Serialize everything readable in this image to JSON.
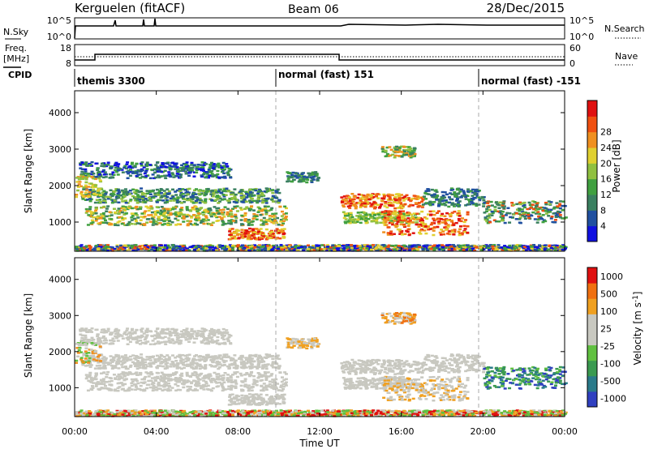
{
  "header": {
    "station": "Kerguelen (fitACF)",
    "beam": "Beam 06",
    "date": "28/Dec/2015"
  },
  "params": {
    "nsky_label": "N.Sky",
    "nsearch_label": "N.Search",
    "nsky_ticks": [
      "10^5",
      "10^0"
    ],
    "nsky_right_ticks": [
      "10^5",
      "10^0"
    ],
    "freq_label_1": "Freq.",
    "freq_label_2": "[MHz]",
    "freq_ticks": [
      "18",
      "8"
    ],
    "nave_label": "Nave",
    "nave_ticks": [
      "60",
      "0"
    ],
    "cpid_label": "CPID",
    "cpid_segments": [
      "themis 3300",
      "normal (fast) 151",
      "normal (fast) -151"
    ]
  },
  "chart_data": [
    {
      "type": "heatmap",
      "name": "power",
      "ylabel": "Slant Range [km]",
      "xlabel": "Time UT",
      "xticks": [
        "00:00",
        "04:00",
        "08:00",
        "12:00",
        "16:00",
        "20:00",
        "00:00"
      ],
      "yticks": [
        "1000",
        "2000",
        "3000",
        "4000"
      ],
      "ylim": [
        200,
        4600
      ],
      "colorbar": {
        "label": "Power [dB]",
        "ticks": [
          "4",
          "8",
          "12",
          "16",
          "20",
          "24",
          "28"
        ],
        "colors": [
          "#1010e0",
          "#2050a0",
          "#3a8060",
          "#40a040",
          "#90c040",
          "#e0d030",
          "#f09020",
          "#f05010",
          "#e01010"
        ]
      }
    },
    {
      "type": "heatmap",
      "name": "velocity",
      "ylabel": "Slant Range [km]",
      "xlabel": "Time UT",
      "xticks": [
        "00:00",
        "04:00",
        "08:00",
        "12:00",
        "16:00",
        "20:00",
        "00:00"
      ],
      "yticks": [
        "1000",
        "2000",
        "3000",
        "4000"
      ],
      "ylim": [
        200,
        4600
      ],
      "colorbar": {
        "label": "Velocity [m s",
        "label_sup": "-1",
        "label_end": "]",
        "ticks": [
          "1000",
          "500",
          "100",
          "25",
          "-25",
          "-100",
          "-500",
          "-1000"
        ],
        "colors": [
          "#3040c0",
          "#2a7a8a",
          "#3a9a50",
          "#60c040",
          "#c8c8c0",
          "#c8c8c0",
          "#f0a020",
          "#f07010",
          "#e01010"
        ]
      }
    }
  ]
}
